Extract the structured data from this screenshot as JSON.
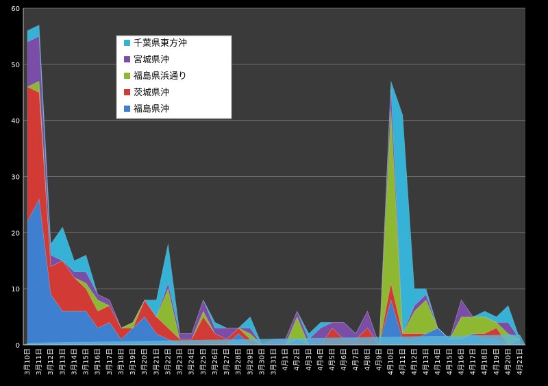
{
  "chart_data": {
    "type": "area",
    "stacked": true,
    "three_d": true,
    "ylim": [
      0,
      60
    ],
    "yticks": [
      0,
      10,
      20,
      30,
      40,
      50,
      60
    ],
    "grid": true,
    "legend_position": "top-left inside plot",
    "categories": [
      "3月10日",
      "3月11日",
      "3月12日",
      "3月13日",
      "3月14日",
      "3月15日",
      "3月16日",
      "3月17日",
      "3月18日",
      "3月19日",
      "3月20日",
      "3月21日",
      "3月22日",
      "3月23日",
      "3月24日",
      "3月25日",
      "3月26日",
      "3月27日",
      "3月28日",
      "3月29日",
      "3月30日",
      "3月31日",
      "4月1日",
      "4月2日",
      "4月3日",
      "4月4日",
      "4月5日",
      "4月6日",
      "4月7日",
      "4月8日",
      "4月9日",
      "4月10日",
      "4月11日",
      "4月12日",
      "4月13日",
      "4月14日",
      "4月15日",
      "4月16日",
      "4月17日",
      "4月18日",
      "4月19日",
      "4月20日",
      "4月21日"
    ],
    "series": [
      {
        "name": "福島県沖",
        "color": "#3f7fcf",
        "values": [
          22,
          26,
          9,
          6,
          6,
          6,
          3,
          4,
          1,
          3,
          5,
          2,
          1,
          0,
          0,
          0,
          0,
          0,
          2,
          0,
          0,
          0,
          0,
          1,
          0,
          0,
          0,
          0,
          0,
          0,
          0,
          8,
          1,
          1,
          2,
          3,
          1,
          1,
          2,
          1,
          1,
          0,
          1
        ]
      },
      {
        "name": "茨城県沖",
        "color": "#d23a35",
        "values": [
          24,
          19,
          5,
          9,
          6,
          4,
          3,
          3,
          2,
          0,
          3,
          3,
          2,
          1,
          1,
          5,
          2,
          1,
          1,
          1,
          0,
          0,
          0,
          0,
          0,
          0,
          3,
          1,
          1,
          3,
          0,
          3,
          1,
          1,
          0,
          0,
          0,
          0,
          0,
          1,
          2,
          0,
          0
        ]
      },
      {
        "name": "福島県浜通り",
        "color": "#8fb832",
        "values": [
          0,
          2,
          0,
          0,
          0,
          1,
          2,
          0,
          0,
          1,
          0,
          0,
          7,
          0,
          0,
          1,
          0,
          0,
          0,
          1,
          0,
          0,
          0,
          4,
          0,
          0,
          0,
          0,
          0,
          0,
          0,
          31,
          0,
          4,
          6,
          0,
          0,
          4,
          3,
          3,
          1,
          2,
          0
        ]
      },
      {
        "name": "宮城県沖",
        "color": "#7a4ea6",
        "values": [
          8,
          8,
          2,
          0,
          1,
          2,
          1,
          1,
          0,
          0,
          0,
          0,
          1,
          1,
          1,
          2,
          1,
          2,
          0,
          1,
          0,
          1,
          1,
          1,
          1,
          3,
          1,
          3,
          1,
          3,
          0,
          4,
          0,
          1,
          1,
          0,
          0,
          3,
          0,
          0,
          0,
          2,
          0
        ]
      },
      {
        "name": "千葉県東方沖",
        "color": "#35b2d6",
        "values": [
          2,
          2,
          2,
          6,
          2,
          3,
          0,
          0,
          0,
          0,
          0,
          3,
          7,
          0,
          0,
          0,
          1,
          0,
          0,
          2,
          0,
          0,
          0,
          0,
          1,
          1,
          0,
          0,
          0,
          0,
          0,
          1,
          39,
          3,
          1,
          0,
          0,
          0,
          0,
          1,
          1,
          3,
          0
        ]
      }
    ]
  }
}
